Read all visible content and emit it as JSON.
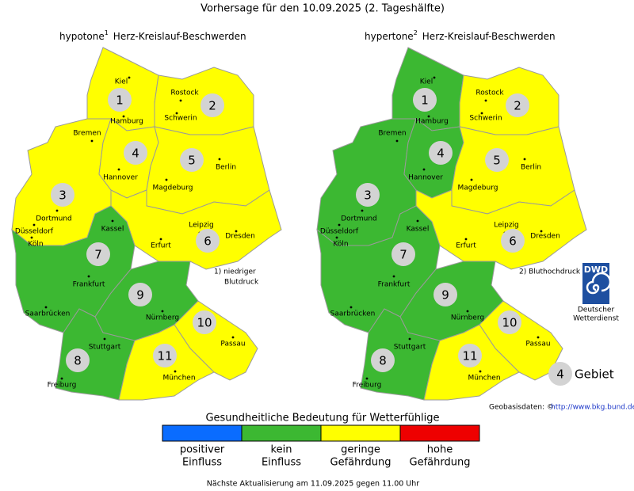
{
  "title": "Vorhersage für den 10.09.2025 (2. Tageshälfte)",
  "maps": [
    {
      "subtitle": "hypotone",
      "footnote_mark": "1",
      "subtitle_rest": "Herz-Kreislauf-Beschwerden",
      "note": [
        "1) niedriger",
        "Blutdruck"
      ],
      "regions": [
        {
          "number": 1,
          "color": "#ffff00"
        },
        {
          "number": 2,
          "color": "#ffff00"
        },
        {
          "number": 3,
          "color": "#ffff00"
        },
        {
          "number": 4,
          "color": "#ffff00"
        },
        {
          "number": 5,
          "color": "#ffff00"
        },
        {
          "number": 6,
          "color": "#ffff00"
        },
        {
          "number": 7,
          "color": "#3cb832"
        },
        {
          "number": 8,
          "color": "#3cb832"
        },
        {
          "number": 9,
          "color": "#3cb832"
        },
        {
          "number": 10,
          "color": "#ffff00"
        },
        {
          "number": 11,
          "color": "#ffff00"
        }
      ]
    },
    {
      "subtitle": "hypertone",
      "footnote_mark": "2",
      "subtitle_rest": "Herz-Kreislauf-Beschwerden",
      "note": [
        "2) Bluthochdruck"
      ],
      "regions": [
        {
          "number": 1,
          "color": "#3cb832"
        },
        {
          "number": 2,
          "color": "#ffff00"
        },
        {
          "number": 3,
          "color": "#3cb832"
        },
        {
          "number": 4,
          "color": "#3cb832"
        },
        {
          "number": 5,
          "color": "#ffff00"
        },
        {
          "number": 6,
          "color": "#ffff00"
        },
        {
          "number": 7,
          "color": "#3cb832"
        },
        {
          "number": 8,
          "color": "#3cb832"
        },
        {
          "number": 9,
          "color": "#3cb832"
        },
        {
          "number": 10,
          "color": "#ffff00"
        },
        {
          "number": 11,
          "color": "#ffff00"
        }
      ]
    }
  ],
  "cities": [
    "Kiel",
    "Rostock",
    "Hamburg",
    "Schwerin",
    "Bremen",
    "Hannover",
    "Berlin",
    "Magdeburg",
    "Dortmund",
    "Düsseldorf",
    "Köln",
    "Kassel",
    "Leipzig",
    "Dresden",
    "Erfurt",
    "Frankfurt",
    "Saarbrücken",
    "Nürnberg",
    "Stuttgart",
    "Passau",
    "München",
    "Freiburg"
  ],
  "region_key": {
    "number": 4,
    "label": "Gebiet"
  },
  "logo": {
    "abbr": "DWD",
    "lines": [
      "Deutscher",
      "Wetterdienst"
    ]
  },
  "source": {
    "label": "Geobasisdaten: ©",
    "link": "http://www.bkg.bund.de"
  },
  "legend": {
    "title": "Gesundheitliche Bedeutung für Wetterfühlige",
    "items": [
      {
        "color": "#0a6cff",
        "label": [
          "positiver",
          "Einfluss"
        ]
      },
      {
        "color": "#3cb832",
        "label": [
          "kein",
          "Einfluss"
        ]
      },
      {
        "color": "#ffff00",
        "label": [
          "geringe",
          "Gefährdung"
        ]
      },
      {
        "color": "#ee0000",
        "label": [
          "hohe",
          "Gefährdung"
        ]
      }
    ]
  },
  "footer": "Nächste Aktualisierung am 11.09.2025 gegen 11.00 Uhr"
}
